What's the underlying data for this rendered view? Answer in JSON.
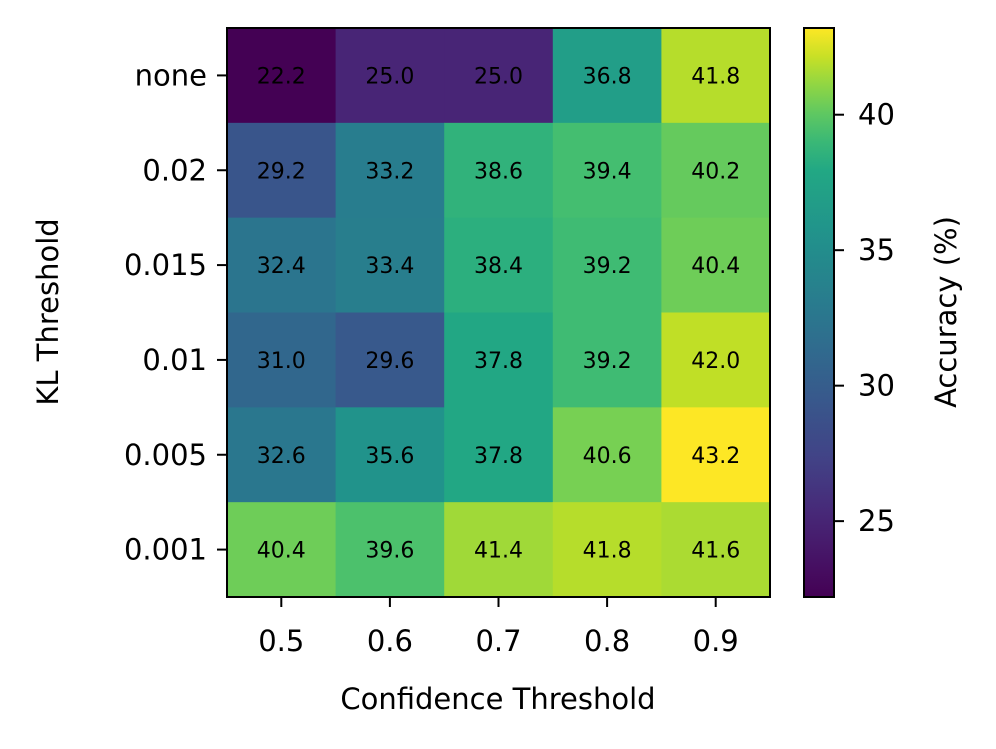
{
  "chart_data": {
    "type": "heatmap",
    "title": "",
    "xlabel": "Confidence Threshold",
    "ylabel": "KL Threshold",
    "x_categories": [
      "0.5",
      "0.6",
      "0.7",
      "0.8",
      "0.9"
    ],
    "y_categories": [
      "none",
      "0.02",
      "0.015",
      "0.01",
      "0.005",
      "0.001"
    ],
    "values": [
      [
        22.2,
        25.0,
        25.0,
        36.8,
        41.8
      ],
      [
        29.2,
        33.2,
        38.6,
        39.4,
        40.2
      ],
      [
        32.4,
        33.4,
        38.4,
        39.2,
        40.4
      ],
      [
        31.0,
        29.6,
        37.8,
        39.2,
        42.0
      ],
      [
        32.6,
        35.6,
        37.8,
        40.6,
        43.2
      ],
      [
        40.4,
        39.6,
        41.4,
        41.8,
        41.6
      ]
    ],
    "value_labels": [
      [
        "22.2",
        "25.0",
        "25.0",
        "36.8",
        "41.8"
      ],
      [
        "29.2",
        "33.2",
        "38.6",
        "39.4",
        "40.2"
      ],
      [
        "32.4",
        "33.4",
        "38.4",
        "39.2",
        "40.4"
      ],
      [
        "31.0",
        "29.6",
        "37.8",
        "39.2",
        "42.0"
      ],
      [
        "32.6",
        "35.6",
        "37.8",
        "40.6",
        "43.2"
      ],
      [
        "40.4",
        "39.6",
        "41.4",
        "41.8",
        "41.6"
      ]
    ],
    "colormap": "viridis",
    "colorbar": {
      "label": "Accuracy (%)",
      "range": [
        22.2,
        43.2
      ],
      "ticks": [
        25,
        30,
        35,
        40
      ],
      "tick_labels": [
        "25",
        "30",
        "35",
        "40"
      ]
    },
    "grid": false
  }
}
